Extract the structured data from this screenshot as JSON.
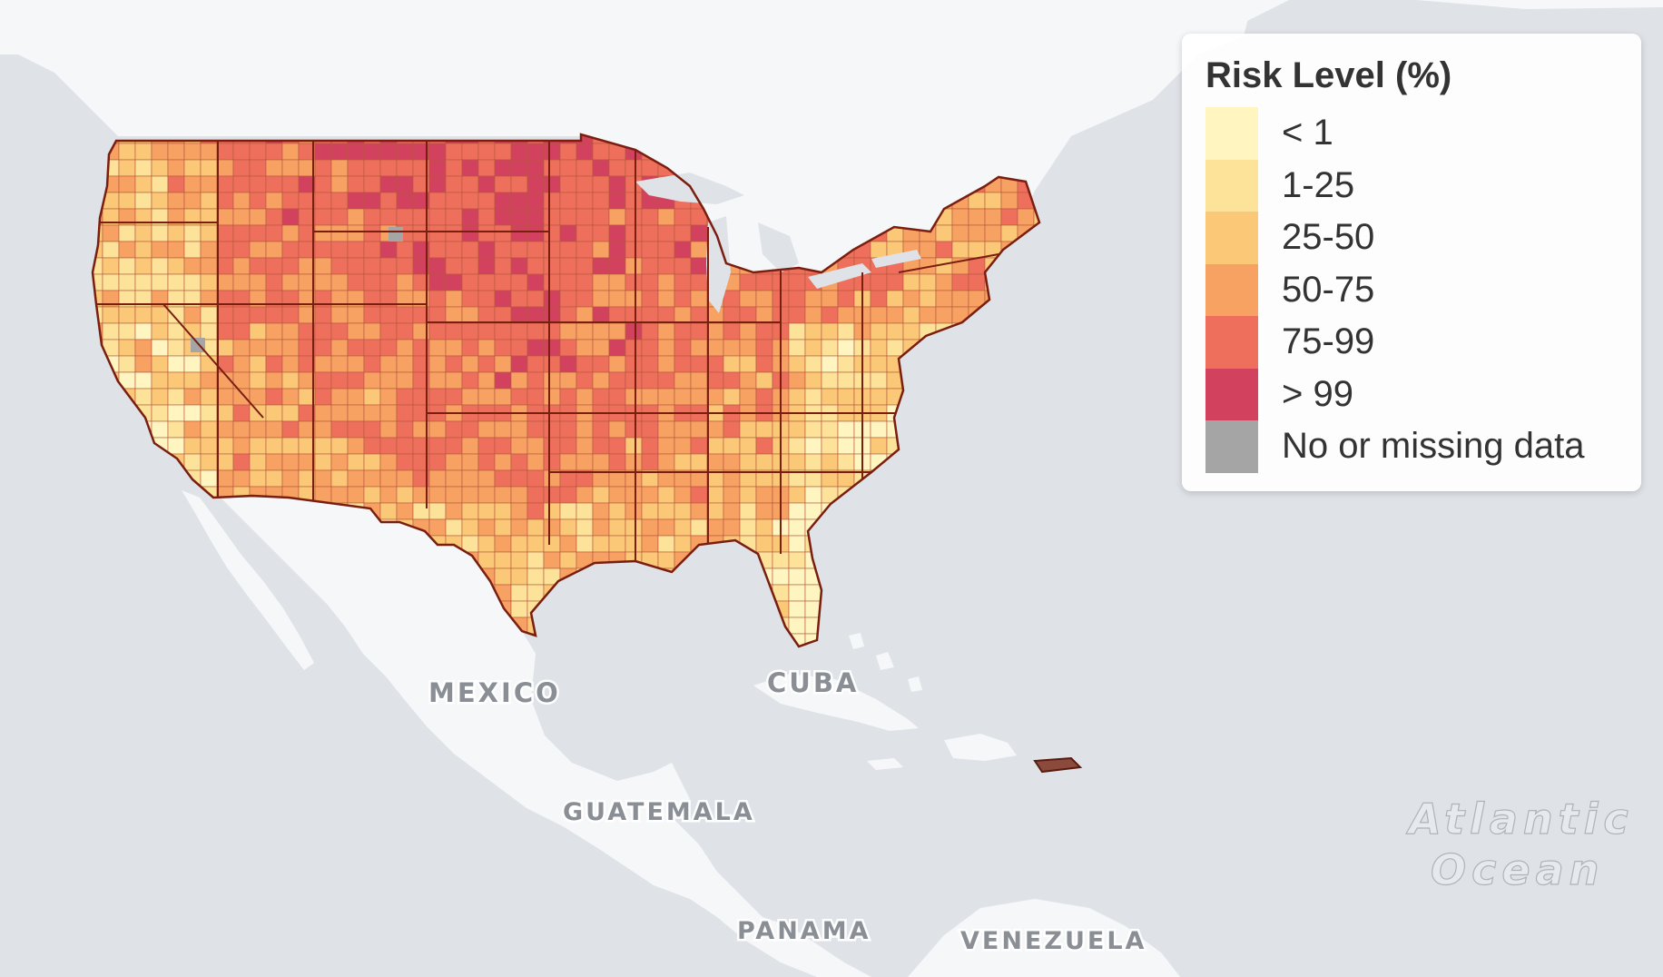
{
  "legend": {
    "title": "Risk Level (%)",
    "items": [
      {
        "label": "< 1",
        "color": "#fff5c0"
      },
      {
        "label": "1-25",
        "color": "#fde29a"
      },
      {
        "label": "25-50",
        "color": "#fbc878"
      },
      {
        "label": "50-75",
        "color": "#f7a163"
      },
      {
        "label": "75-99",
        "color": "#ee6f5c"
      },
      {
        "label": "> 99",
        "color": "#d2425e"
      },
      {
        "label": "No or missing data",
        "color": "#a5a5a5"
      }
    ]
  },
  "places": {
    "mexico": "MEXICO",
    "cuba": "CUBA",
    "guatemala": "GUATEMALA",
    "panama": "PANAMA",
    "venezuela": "VENEZUELA",
    "ocean_line1": "Atlantic",
    "ocean_line2": "Ocean"
  },
  "colors": {
    "water": "#dfe3e8",
    "land": "#f6f7f9",
    "border": "#7a1e10"
  }
}
